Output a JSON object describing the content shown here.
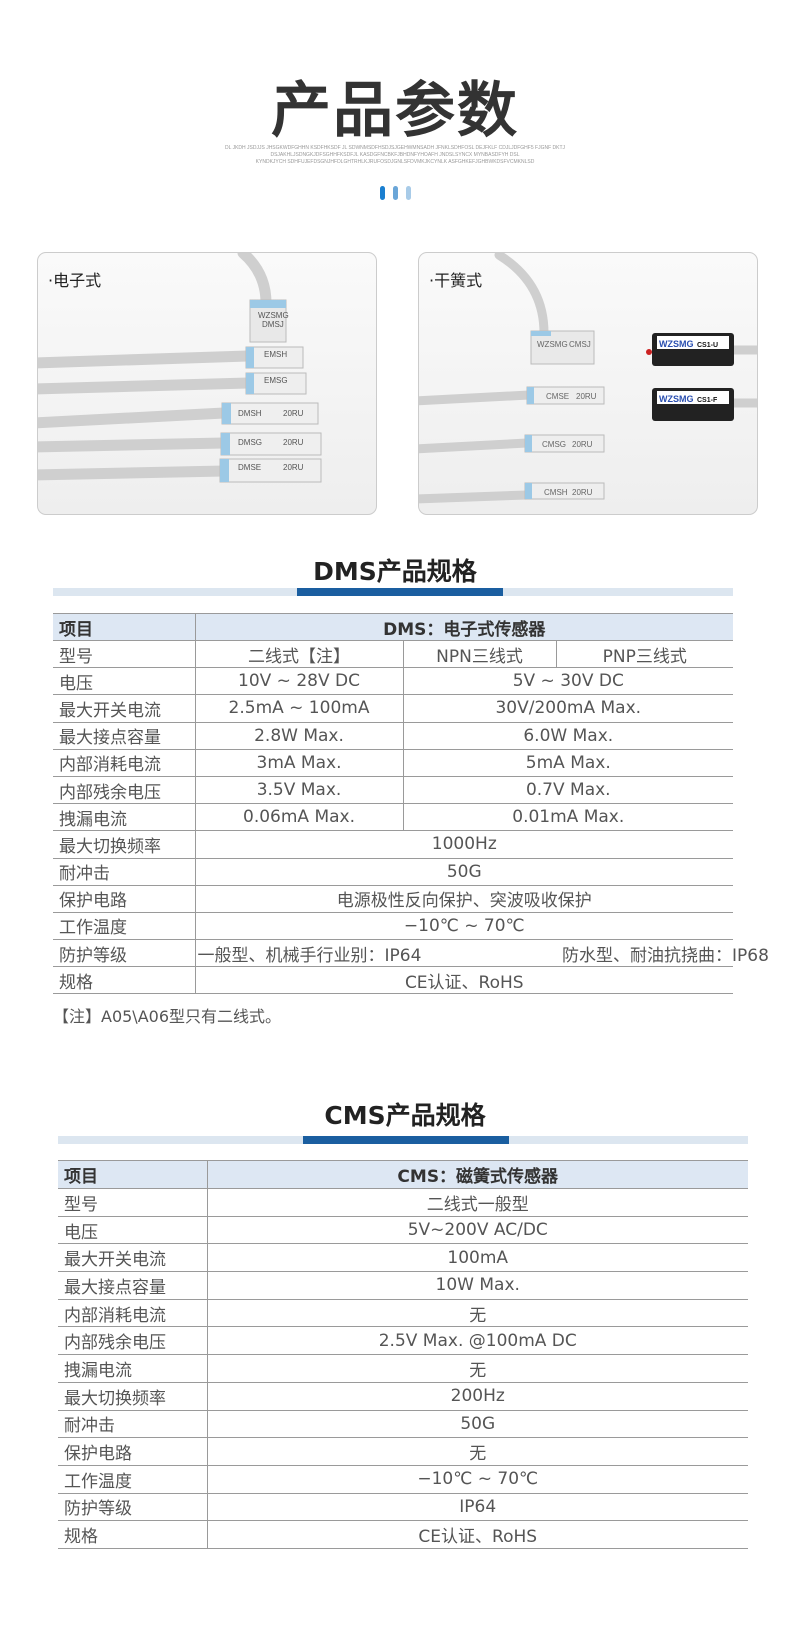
{
  "header": {
    "title": "产品参数",
    "subtitle_lines": [
      "DL JKDH JSDJJS JHSGKWDFGHHN KSDFHKSDF JL SDWNMSDFHSDJSJGEHWMNSADH JFNKLSDHFOSL DEJFKLF CDJLJDFGHF5 FJGNF DKTJ",
      "DSJAKHLJSDNGKJDFSGHHFKSDFJL KASDGFNCBKFJBHDNFYHOAFH JNDSLSYNCX MYNBASDFYH DSL",
      "KYNDKJYCH SDHFUJEFDSGNJHFDLGHTRHLKJRUFOSDJGNLSFDVMKJKCYNLK ASFGHKEFJGHBWKDSFVCMKNLSD"
    ]
  },
  "products": {
    "electronic": {
      "label": "·电子式",
      "sensors": [
        "WZSMG",
        "DMSJ",
        "EMSH",
        "EMSG",
        "DMSH",
        "20RU",
        "DMSG",
        "20RU",
        "DMSE",
        "20RU"
      ]
    },
    "reed": {
      "label": "·干簧式",
      "sensors": [
        "WZSMG",
        "CMSJ",
        "CMSE",
        "20RU",
        "CMSG",
        "20RU",
        "CMSH",
        "20RU",
        "WZSMG",
        "CS1-U",
        "WZSMG",
        "CS1-F"
      ]
    }
  },
  "colors": {
    "accent": "#1a5ea0",
    "bar_light": "#dce6f0",
    "header_bg": "#dde7f3"
  },
  "dms": {
    "title": "DMS产品规格",
    "header": [
      "项目",
      "DMS：电子式传感器"
    ],
    "rows": [
      [
        "型号",
        "二线式【注】",
        "NPN三线式",
        "PNP三线式"
      ],
      [
        "电压",
        "10V ~ 28V DC",
        "5V ~ 30V DC"
      ],
      [
        "最大开关电流",
        "2.5mA ~ 100mA",
        "30V/200mA  Max."
      ],
      [
        "最大接点容量",
        "2.8W Max.",
        "6.0W Max."
      ],
      [
        "内部消耗电流",
        "3mA Max.",
        "5mA Max."
      ],
      [
        "内部残余电压",
        "3.5V Max.",
        "0.7V Max."
      ],
      [
        "拽漏电流",
        "0.06mA Max.",
        "0.01mA Max."
      ],
      [
        "最大切换频率",
        "1000Hz"
      ],
      [
        "耐冲击",
        "50G"
      ],
      [
        "保护电路",
        "电源极性反向保护、突波吸收保护"
      ],
      [
        "工作温度",
        "−10℃ ~ 70℃"
      ],
      [
        "防护等级",
        "一般型、机械手行业别：IP64",
        "防水型、耐油抗挠曲：IP68"
      ],
      [
        "规格",
        "CE认证、RoHS"
      ]
    ],
    "note": "【注】A05\\A06型只有二线式。"
  },
  "cms": {
    "title": "CMS产品规格",
    "header": [
      "项目",
      "CMS：磁簧式传感器"
    ],
    "rows": [
      [
        "型号",
        "二线式一般型"
      ],
      [
        "电压",
        "5V~200V AC/DC"
      ],
      [
        "最大开关电流",
        "100mA"
      ],
      [
        "最大接点容量",
        "10W  Max."
      ],
      [
        "内部消耗电流",
        "无"
      ],
      [
        "内部残余电压",
        "2.5V Max. @100mA DC"
      ],
      [
        "拽漏电流",
        "无"
      ],
      [
        "最大切换频率",
        "200Hz"
      ],
      [
        "耐冲击",
        "50G"
      ],
      [
        "保护电路",
        "无"
      ],
      [
        "工作温度",
        "−10℃ ~ 70℃"
      ],
      [
        "防护等级",
        "IP64"
      ],
      [
        "规格",
        "CE认证、RoHS"
      ]
    ]
  }
}
